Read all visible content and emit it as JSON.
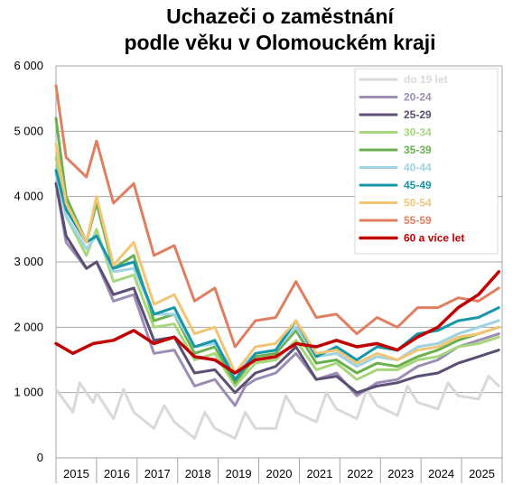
{
  "chart_data": {
    "type": "line",
    "title": "Uchazeči o zaměstnání",
    "subtitle": "podle věku v Olomouckém kraji",
    "xlabel": "",
    "ylabel": "",
    "ylim": [
      0,
      6000
    ],
    "yticks": [
      0,
      1000,
      2000,
      3000,
      4000,
      5000,
      6000
    ],
    "ytick_labels": [
      "0",
      "1 000",
      "2 000",
      "3 000",
      "4 000",
      "5 000",
      "6 000"
    ],
    "years": [
      "2015",
      "2016",
      "2017",
      "2018",
      "2019",
      "2020",
      "2021",
      "2022",
      "2023",
      "2024",
      "2025"
    ],
    "x_range": [
      "2015-01",
      "2025-12"
    ],
    "grid": "horizontal",
    "legend_position": "top-right",
    "series": [
      {
        "name": "do 19 let",
        "color": "#d9d9d9",
        "width": 3,
        "points": [
          [
            "2015-01",
            1050
          ],
          [
            "2015-06",
            700
          ],
          [
            "2015-08",
            1150
          ],
          [
            "2015-12",
            850
          ],
          [
            "2016-01",
            1000
          ],
          [
            "2016-06",
            600
          ],
          [
            "2016-09",
            1050
          ],
          [
            "2016-12",
            700
          ],
          [
            "2017-06",
            450
          ],
          [
            "2017-09",
            800
          ],
          [
            "2017-12",
            550
          ],
          [
            "2018-06",
            300
          ],
          [
            "2018-09",
            700
          ],
          [
            "2018-12",
            450
          ],
          [
            "2019-06",
            300
          ],
          [
            "2019-09",
            700
          ],
          [
            "2019-12",
            450
          ],
          [
            "2020-06",
            450
          ],
          [
            "2020-09",
            950
          ],
          [
            "2020-12",
            700
          ],
          [
            "2021-06",
            550
          ],
          [
            "2021-09",
            1000
          ],
          [
            "2021-12",
            750
          ],
          [
            "2022-06",
            600
          ],
          [
            "2022-09",
            1050
          ],
          [
            "2022-12",
            800
          ],
          [
            "2023-06",
            650
          ],
          [
            "2023-09",
            1100
          ],
          [
            "2023-12",
            850
          ],
          [
            "2024-06",
            750
          ],
          [
            "2024-09",
            1150
          ],
          [
            "2024-12",
            950
          ],
          [
            "2025-06",
            900
          ],
          [
            "2025-09",
            1250
          ],
          [
            "2025-12",
            1100
          ]
        ]
      },
      {
        "name": "20-24",
        "color": "#9b8db5",
        "width": 3,
        "points": [
          [
            "2015-01",
            4200
          ],
          [
            "2015-04",
            3300
          ],
          [
            "2015-10",
            2900
          ],
          [
            "2016-01",
            3000
          ],
          [
            "2016-06",
            2400
          ],
          [
            "2016-12",
            2500
          ],
          [
            "2017-06",
            1600
          ],
          [
            "2017-12",
            1650
          ],
          [
            "2018-06",
            1100
          ],
          [
            "2018-12",
            1200
          ],
          [
            "2019-06",
            800
          ],
          [
            "2019-09",
            1100
          ],
          [
            "2019-12",
            1200
          ],
          [
            "2020-06",
            1300
          ],
          [
            "2020-12",
            1600
          ],
          [
            "2021-06",
            1200
          ],
          [
            "2021-12",
            1300
          ],
          [
            "2022-06",
            950
          ],
          [
            "2022-12",
            1150
          ],
          [
            "2023-06",
            1200
          ],
          [
            "2023-12",
            1400
          ],
          [
            "2024-06",
            1500
          ],
          [
            "2024-12",
            1700
          ],
          [
            "2025-06",
            1800
          ],
          [
            "2025-12",
            1900
          ]
        ]
      },
      {
        "name": "25-29",
        "color": "#5c4f74",
        "width": 3,
        "points": [
          [
            "2015-01",
            4200
          ],
          [
            "2015-04",
            3400
          ],
          [
            "2015-10",
            2900
          ],
          [
            "2016-01",
            3000
          ],
          [
            "2016-06",
            2500
          ],
          [
            "2016-12",
            2600
          ],
          [
            "2017-06",
            1800
          ],
          [
            "2017-12",
            1850
          ],
          [
            "2018-06",
            1300
          ],
          [
            "2018-12",
            1350
          ],
          [
            "2019-06",
            1000
          ],
          [
            "2019-12",
            1300
          ],
          [
            "2020-06",
            1400
          ],
          [
            "2020-12",
            1700
          ],
          [
            "2021-06",
            1200
          ],
          [
            "2021-12",
            1250
          ],
          [
            "2022-06",
            1000
          ],
          [
            "2022-12",
            1100
          ],
          [
            "2023-06",
            1150
          ],
          [
            "2023-12",
            1250
          ],
          [
            "2024-06",
            1300
          ],
          [
            "2024-12",
            1450
          ],
          [
            "2025-06",
            1550
          ],
          [
            "2025-12",
            1650
          ]
        ]
      },
      {
        "name": "30-34",
        "color": "#a6d77d",
        "width": 3,
        "points": [
          [
            "2015-01",
            4600
          ],
          [
            "2015-04",
            3700
          ],
          [
            "2015-10",
            3100
          ],
          [
            "2016-01",
            3500
          ],
          [
            "2016-06",
            2700
          ],
          [
            "2016-12",
            2800
          ],
          [
            "2017-06",
            2000
          ],
          [
            "2017-12",
            2050
          ],
          [
            "2018-06",
            1500
          ],
          [
            "2018-12",
            1600
          ],
          [
            "2019-06",
            1100
          ],
          [
            "2019-12",
            1450
          ],
          [
            "2020-06",
            1500
          ],
          [
            "2020-12",
            1800
          ],
          [
            "2021-06",
            1350
          ],
          [
            "2021-12",
            1450
          ],
          [
            "2022-06",
            1200
          ],
          [
            "2022-12",
            1350
          ],
          [
            "2023-06",
            1350
          ],
          [
            "2023-12",
            1500
          ],
          [
            "2024-06",
            1550
          ],
          [
            "2024-12",
            1700
          ],
          [
            "2025-06",
            1750
          ],
          [
            "2025-12",
            1850
          ]
        ]
      },
      {
        "name": "35-39",
        "color": "#6ab04c",
        "width": 3,
        "points": [
          [
            "2015-01",
            5200
          ],
          [
            "2015-04",
            4000
          ],
          [
            "2015-10",
            3300
          ],
          [
            "2016-01",
            3900
          ],
          [
            "2016-06",
            2900
          ],
          [
            "2016-12",
            3100
          ],
          [
            "2017-06",
            2100
          ],
          [
            "2017-12",
            2200
          ],
          [
            "2018-06",
            1600
          ],
          [
            "2018-12",
            1700
          ],
          [
            "2019-06",
            1150
          ],
          [
            "2019-12",
            1550
          ],
          [
            "2020-06",
            1600
          ],
          [
            "2020-12",
            1950
          ],
          [
            "2021-06",
            1450
          ],
          [
            "2021-12",
            1500
          ],
          [
            "2022-06",
            1300
          ],
          [
            "2022-12",
            1450
          ],
          [
            "2023-06",
            1400
          ],
          [
            "2023-12",
            1550
          ],
          [
            "2024-06",
            1650
          ],
          [
            "2024-12",
            1800
          ],
          [
            "2025-06",
            1900
          ],
          [
            "2025-12",
            2000
          ]
        ]
      },
      {
        "name": "40-44",
        "color": "#9fd3e3",
        "width": 3,
        "points": [
          [
            "2015-01",
            4350
          ],
          [
            "2015-04",
            3700
          ],
          [
            "2015-10",
            3200
          ],
          [
            "2016-01",
            3400
          ],
          [
            "2016-06",
            2850
          ],
          [
            "2016-12",
            2900
          ],
          [
            "2017-06",
            2200
          ],
          [
            "2017-12",
            2200
          ],
          [
            "2018-06",
            1700
          ],
          [
            "2018-12",
            1750
          ],
          [
            "2019-06",
            1300
          ],
          [
            "2019-12",
            1600
          ],
          [
            "2020-06",
            1650
          ],
          [
            "2020-12",
            2000
          ],
          [
            "2021-06",
            1550
          ],
          [
            "2021-12",
            1600
          ],
          [
            "2022-06",
            1400
          ],
          [
            "2022-12",
            1550
          ],
          [
            "2023-06",
            1500
          ],
          [
            "2023-12",
            1700
          ],
          [
            "2024-06",
            1750
          ],
          [
            "2024-12",
            1900
          ],
          [
            "2025-06",
            2000
          ],
          [
            "2025-12",
            2100
          ]
        ]
      },
      {
        "name": "45-49",
        "color": "#1696a8",
        "width": 3,
        "points": [
          [
            "2015-01",
            4400
          ],
          [
            "2015-04",
            3800
          ],
          [
            "2015-10",
            3300
          ],
          [
            "2016-01",
            3400
          ],
          [
            "2016-06",
            2900
          ],
          [
            "2016-12",
            3000
          ],
          [
            "2017-06",
            2200
          ],
          [
            "2017-12",
            2300
          ],
          [
            "2018-06",
            1700
          ],
          [
            "2018-12",
            1800
          ],
          [
            "2019-06",
            1200
          ],
          [
            "2019-12",
            1600
          ],
          [
            "2020-06",
            1650
          ],
          [
            "2020-12",
            2100
          ],
          [
            "2021-06",
            1550
          ],
          [
            "2021-12",
            1700
          ],
          [
            "2022-06",
            1500
          ],
          [
            "2022-12",
            1700
          ],
          [
            "2023-06",
            1650
          ],
          [
            "2023-12",
            1900
          ],
          [
            "2024-06",
            1950
          ],
          [
            "2024-12",
            2100
          ],
          [
            "2025-06",
            2150
          ],
          [
            "2025-12",
            2300
          ]
        ]
      },
      {
        "name": "50-54",
        "color": "#f2c575",
        "width": 3,
        "points": [
          [
            "2015-01",
            4800
          ],
          [
            "2015-04",
            3900
          ],
          [
            "2015-10",
            3300
          ],
          [
            "2016-01",
            4000
          ],
          [
            "2016-06",
            2950
          ],
          [
            "2016-12",
            3300
          ],
          [
            "2017-06",
            2350
          ],
          [
            "2017-12",
            2500
          ],
          [
            "2018-06",
            1900
          ],
          [
            "2018-12",
            2000
          ],
          [
            "2019-06",
            1300
          ],
          [
            "2019-12",
            1700
          ],
          [
            "2020-06",
            1750
          ],
          [
            "2020-12",
            2100
          ],
          [
            "2021-06",
            1600
          ],
          [
            "2021-12",
            1650
          ],
          [
            "2022-06",
            1450
          ],
          [
            "2022-12",
            1600
          ],
          [
            "2023-06",
            1500
          ],
          [
            "2023-12",
            1650
          ],
          [
            "2024-06",
            1700
          ],
          [
            "2024-12",
            1850
          ],
          [
            "2025-06",
            1900
          ],
          [
            "2025-12",
            2000
          ]
        ]
      },
      {
        "name": "55-59",
        "color": "#e07f5f",
        "width": 3,
        "points": [
          [
            "2015-01",
            5700
          ],
          [
            "2015-04",
            4600
          ],
          [
            "2015-10",
            4300
          ],
          [
            "2016-01",
            4850
          ],
          [
            "2016-06",
            3900
          ],
          [
            "2016-12",
            4200
          ],
          [
            "2017-06",
            3100
          ],
          [
            "2017-12",
            3250
          ],
          [
            "2018-06",
            2400
          ],
          [
            "2018-12",
            2600
          ],
          [
            "2019-06",
            1700
          ],
          [
            "2019-12",
            2100
          ],
          [
            "2020-06",
            2150
          ],
          [
            "2020-12",
            2700
          ],
          [
            "2021-06",
            2150
          ],
          [
            "2021-12",
            2200
          ],
          [
            "2022-06",
            1900
          ],
          [
            "2022-12",
            2150
          ],
          [
            "2023-06",
            2000
          ],
          [
            "2023-12",
            2300
          ],
          [
            "2024-06",
            2300
          ],
          [
            "2024-12",
            2450
          ],
          [
            "2025-06",
            2400
          ],
          [
            "2025-12",
            2600
          ]
        ]
      },
      {
        "name": "60 a více let",
        "color": "#c00000",
        "width": 3.5,
        "points": [
          [
            "2015-01",
            1750
          ],
          [
            "2015-06",
            1600
          ],
          [
            "2015-12",
            1750
          ],
          [
            "2016-06",
            1800
          ],
          [
            "2016-12",
            1950
          ],
          [
            "2017-06",
            1750
          ],
          [
            "2017-12",
            1850
          ],
          [
            "2018-06",
            1550
          ],
          [
            "2018-12",
            1500
          ],
          [
            "2019-06",
            1300
          ],
          [
            "2019-12",
            1500
          ],
          [
            "2020-06",
            1550
          ],
          [
            "2020-12",
            1750
          ],
          [
            "2021-06",
            1700
          ],
          [
            "2021-12",
            1800
          ],
          [
            "2022-06",
            1700
          ],
          [
            "2022-12",
            1750
          ],
          [
            "2023-06",
            1650
          ],
          [
            "2023-12",
            1850
          ],
          [
            "2024-06",
            2000
          ],
          [
            "2024-12",
            2300
          ],
          [
            "2025-06",
            2500
          ],
          [
            "2025-12",
            2850
          ]
        ]
      }
    ]
  }
}
